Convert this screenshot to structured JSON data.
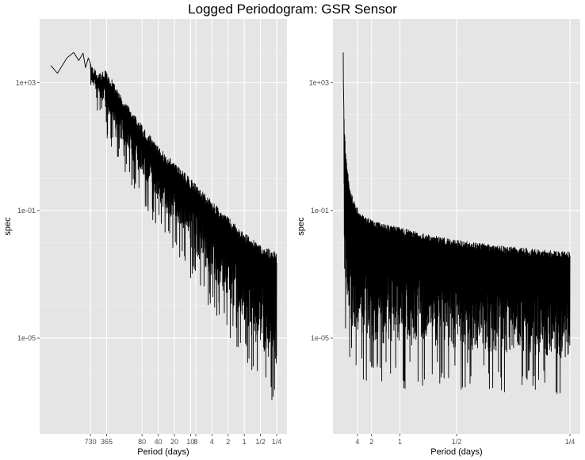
{
  "title": "Logged Periodogram: GSR Sensor",
  "colors": {
    "panel": "#e5e5e5",
    "grid_major": "#ffffff",
    "line": "#000000",
    "tick_text": "#4d4d4d"
  },
  "chart_data": [
    {
      "type": "line",
      "panel": "left",
      "x_scale": "log",
      "y_scale": "log",
      "xlabel": "Period (days)",
      "ylabel": "spec",
      "x_ticks": [
        "730",
        "365",
        "80",
        "40",
        "20",
        "10",
        "8",
        "4",
        "2",
        "1",
        "1/2",
        "1/4"
      ],
      "x_tick_values_days": [
        730,
        365,
        80,
        40,
        20,
        10,
        8,
        4,
        2,
        1,
        0.5,
        0.25
      ],
      "y_ticks": [
        "1e+03",
        "1e-01",
        "1e-05"
      ],
      "y_tick_values": [
        1000,
        0.1,
        1e-05
      ],
      "ylim": [
        1e-08,
        100000.0
      ],
      "series": [
        {
          "upper_envelope": [
            [
              4000,
              3500
            ],
            [
              3000,
              2000
            ],
            [
              2000,
              6000
            ],
            [
              1500,
              9000
            ],
            [
              1200,
              5000
            ],
            [
              1000,
              8500
            ],
            [
              900,
              3000
            ],
            [
              800,
              6000
            ],
            [
              730,
              4000
            ],
            [
              500,
              2000
            ],
            [
              365,
              2500
            ],
            [
              200,
              400
            ],
            [
              100,
              80
            ],
            [
              40,
              10
            ],
            [
              10,
              1
            ],
            [
              4,
              0.2
            ],
            [
              2,
              0.06
            ],
            [
              1,
              0.02
            ],
            [
              0.5,
              0.008
            ],
            [
              0.25,
              0.005
            ]
          ],
          "lower_envelope": [
            [
              4000,
              3500
            ],
            [
              3000,
              2000
            ],
            [
              2000,
              6000
            ],
            [
              1500,
              9000
            ],
            [
              1200,
              5000
            ],
            [
              1000,
              8500
            ],
            [
              900,
              3000
            ],
            [
              800,
              6000
            ],
            [
              730,
              1000
            ],
            [
              500,
              300
            ],
            [
              365,
              80
            ],
            [
              200,
              10
            ],
            [
              100,
              1
            ],
            [
              40,
              0.1
            ],
            [
              10,
              0.003
            ],
            [
              4,
              0.0003
            ],
            [
              2,
              5e-05
            ],
            [
              1,
              1e-05
            ],
            [
              0.5,
              1e-06
            ],
            [
              0.25,
              3e-07
            ]
          ]
        }
      ]
    },
    {
      "type": "line",
      "panel": "right",
      "x_scale": "frequency",
      "y_scale": "log",
      "xlabel": "Period (days)",
      "ylabel": "spec",
      "x_ticks": [
        "4",
        "2",
        "1",
        "1/2",
        "1/4"
      ],
      "x_tick_values_days": [
        4,
        2,
        1,
        0.5,
        0.25
      ],
      "y_ticks": [
        "1e+03",
        "1e-01",
        "1e-05"
      ],
      "y_tick_values": [
        1000,
        0.1,
        1e-05
      ],
      "ylim": [
        1e-08,
        100000.0
      ],
      "series": [
        {
          "upper_envelope": [
            [
              4000,
              9000
            ],
            [
              200,
              600
            ],
            [
              80,
              150
            ],
            [
              40,
              30
            ],
            [
              20,
              5
            ],
            [
              10,
              1
            ],
            [
              8,
              0.5
            ],
            [
              4,
              0.12
            ],
            [
              2,
              0.05
            ],
            [
              1,
              0.03
            ],
            [
              0.5,
              0.012
            ],
            [
              0.25,
              0.005
            ]
          ],
          "lower_envelope": [
            [
              4000,
              9000
            ],
            [
              200,
              0.5
            ],
            [
              80,
              0.002
            ],
            [
              40,
              0.0002
            ],
            [
              20,
              5e-05
            ],
            [
              10,
              2e-05
            ],
            [
              8,
              1e-05
            ],
            [
              4,
              5e-06
            ],
            [
              2,
              3e-06
            ],
            [
              1,
              2e-06
            ],
            [
              0.5,
              2e-06
            ],
            [
              0.25,
              1e-06
            ]
          ]
        }
      ]
    }
  ]
}
